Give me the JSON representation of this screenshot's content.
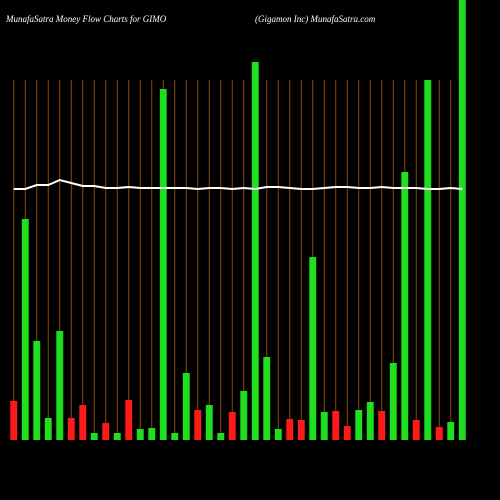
{
  "chart_data": {
    "type": "bar",
    "title": "MunafaSatra  Money Flow  Charts for GIMO",
    "subtitle": "(Gigamon  Inc) MunafaSatra.com",
    "values": [
      39,
      221,
      99,
      22,
      109,
      22,
      35,
      7,
      17,
      7,
      40,
      11,
      12,
      351,
      7,
      67,
      30,
      35,
      7,
      28,
      49,
      378,
      83,
      11,
      21,
      20,
      183,
      28,
      29,
      14,
      30,
      38,
      29,
      77,
      268,
      20,
      360,
      13,
      18,
      460
    ],
    "bar_colors": [
      "#ff1a1a",
      "#1ee01e",
      "#1ee01e",
      "#1ee01e",
      "#1ee01e",
      "#ff1a1a",
      "#ff1a1a",
      "#1ee01e",
      "#ff1a1a",
      "#1ee01e",
      "#ff1a1a",
      "#1ee01e",
      "#1ee01e",
      "#1ee01e",
      "#1ee01e",
      "#1ee01e",
      "#ff1a1a",
      "#1ee01e",
      "#1ee01e",
      "#ff1a1a",
      "#1ee01e",
      "#1ee01e",
      "#1ee01e",
      "#1ee01e",
      "#ff1a1a",
      "#ff1a1a",
      "#1ee01e",
      "#1ee01e",
      "#ff1a1a",
      "#ff1a1a",
      "#1ee01e",
      "#1ee01e",
      "#ff1a1a",
      "#1ee01e",
      "#1ee01e",
      "#ff1a1a",
      "#1ee01e",
      "#ff1a1a",
      "#1ee01e",
      "#1ee01e"
    ],
    "line_values": [
      251,
      251,
      255,
      255,
      260,
      257,
      254,
      254,
      252,
      252,
      253,
      252,
      252,
      252,
      252,
      252,
      251,
      252,
      252,
      251,
      252,
      251,
      253,
      253,
      252,
      251,
      251,
      252,
      253,
      253,
      252,
      252,
      253,
      252,
      252,
      252,
      251,
      251,
      252,
      251
    ],
    "line_color": "#ffffff",
    "grid_color": "#8b4a12",
    "ylim": [
      0,
      440
    ],
    "grid": true
  }
}
